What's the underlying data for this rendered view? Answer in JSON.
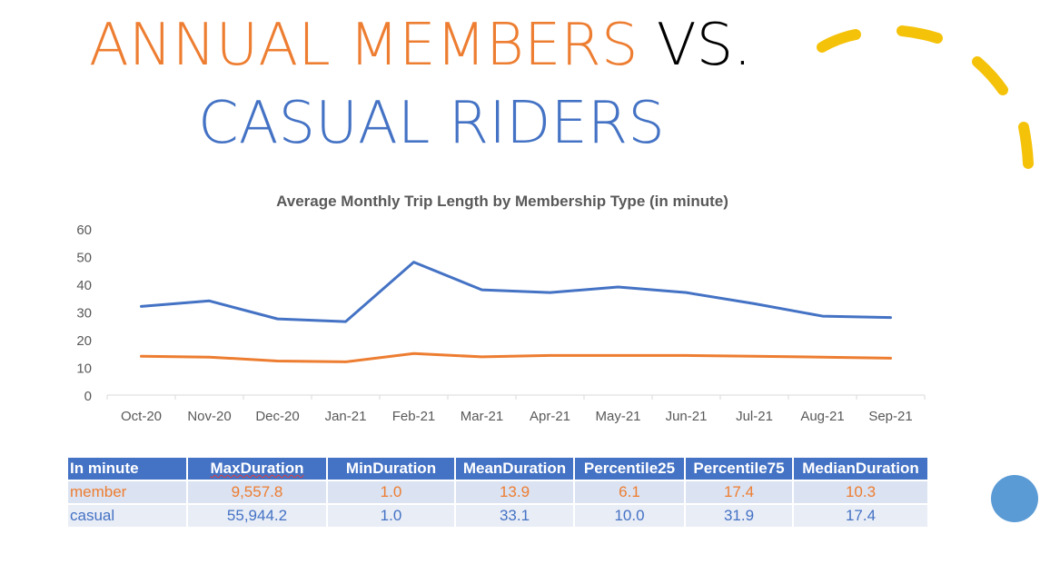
{
  "slide": {
    "title_part1": "ANNUAL MEMBERS",
    "title_part2": "VS.",
    "title_line2": "CASUAL RIDERS",
    "colors": {
      "title_part1": "#ed7d31",
      "title_part2": "#000000",
      "title_line2": "#4472c4",
      "decoration_arc": "#f5c20a",
      "decoration_circle": "#5b9bd5"
    }
  },
  "chart_data": {
    "type": "line",
    "title": "Average Monthly Trip Length by Membership Type (in minute)",
    "xlabel": "",
    "ylabel": "",
    "categories": [
      "Oct-20",
      "Nov-20",
      "Dec-20",
      "Jan-21",
      "Feb-21",
      "Mar-21",
      "Apr-21",
      "May-21",
      "Jun-21",
      "Jul-21",
      "Aug-21",
      "Sep-21"
    ],
    "ylim": [
      0,
      60
    ],
    "yticks": [
      0,
      10,
      20,
      30,
      40,
      50,
      60
    ],
    "grid": false,
    "legend": "none",
    "series": [
      {
        "color": "#4472c4",
        "values": [
          32,
          34,
          27.5,
          26.5,
          48,
          38,
          37,
          39,
          37,
          33,
          28.5,
          28
        ]
      },
      {
        "color": "#ed7d31",
        "values": [
          14,
          13.7,
          12.3,
          12,
          15,
          13.8,
          14.3,
          14.3,
          14.3,
          14,
          13.7,
          13.3
        ]
      }
    ]
  },
  "table": {
    "headers": [
      "In minute",
      "MaxDuration",
      "MinDuration",
      "MeanDuration",
      "Percentile25",
      "Percentile75",
      "MedianDuration"
    ],
    "rows": [
      [
        "member",
        "9,557.8",
        "1.0",
        "13.9",
        "6.1",
        "17.4",
        "10.3"
      ],
      [
        "casual",
        "55,944.2",
        "1.0",
        "33.1",
        "10.0",
        "31.9",
        "17.4"
      ]
    ]
  }
}
